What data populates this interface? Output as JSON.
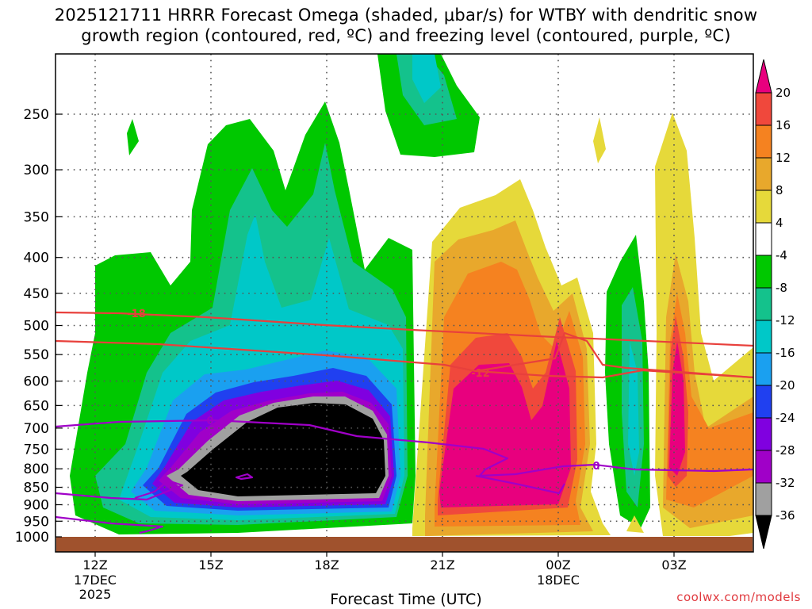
{
  "title": {
    "line1": "2025121711 HRRR Forecast Omega (shaded, μbar/s) for WTBY with dendritic snow",
    "line2": "growth region (contoured, red, ºC) and freezing level (contoured, purple, ºC)"
  },
  "chart_data": {
    "type": "heatmap",
    "xlabel": "Forecast Time (UTC)",
    "x_ticks": [
      {
        "label": "12Z",
        "sub": [
          "17DEC",
          "2025"
        ],
        "hour": 0
      },
      {
        "label": "15Z",
        "sub": [],
        "hour": 3
      },
      {
        "label": "18Z",
        "sub": [],
        "hour": 6
      },
      {
        "label": "21Z",
        "sub": [],
        "hour": 9
      },
      {
        "label": "00Z",
        "sub": [
          "18DEC"
        ],
        "hour": 12
      },
      {
        "label": "03Z",
        "sub": [],
        "hour": 15
      }
    ],
    "x_range_hours": [
      -1,
      17
    ],
    "ylabel": "",
    "y_ticks": [
      250,
      300,
      350,
      400,
      450,
      500,
      550,
      600,
      650,
      700,
      750,
      800,
      850,
      900,
      950,
      1000
    ],
    "y_axis_units": "hPa (pressure, log scale, inverted)",
    "y_range_hpa": [
      200,
      1025
    ],
    "colorbar": {
      "labels": [
        20,
        16,
        12,
        8,
        4,
        -4,
        -8,
        -12,
        -16,
        -20,
        -24,
        -28,
        -32,
        -36
      ],
      "colors": [
        "#e8007e",
        "#f0483c",
        "#f58220",
        "#e8a82c",
        "#e6d93a",
        "#ffffff",
        "#00c800",
        "#14c28c",
        "#00c8c8",
        "#1aa0f0",
        "#2040f0",
        "#8000e0",
        "#a000c8",
        "#a0a0a0",
        "#000000"
      ]
    },
    "annotations": [
      "-18",
      "-12",
      "0"
    ],
    "contours": {
      "dendritic_snow_growth_region": {
        "color": "#e8403c",
        "levels_c": [
          -18,
          -12
        ]
      },
      "freezing_level": {
        "color": "#a000c8",
        "level_c": 0
      }
    },
    "grid": true
  },
  "credit": "coolwx.com/models"
}
